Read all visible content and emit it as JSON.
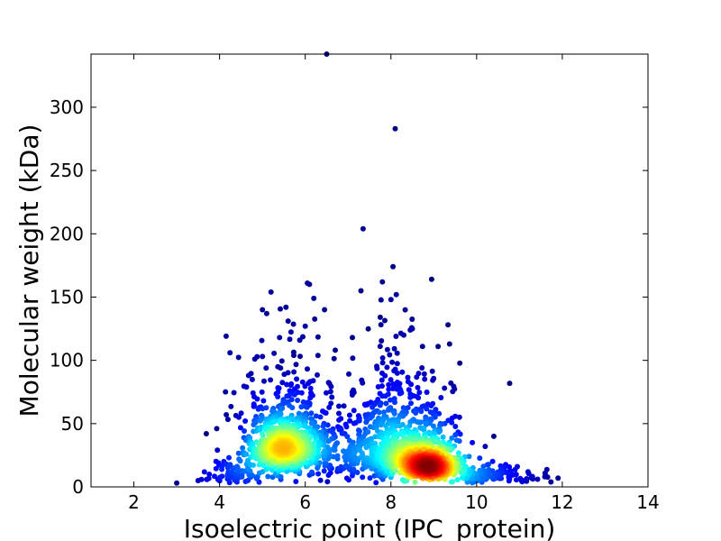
{
  "chart_data": {
    "type": "scatter",
    "title": "",
    "xlabel": "Isoelectric point (IPC_protein)",
    "ylabel": "Molecular weight (kDa)",
    "xlim": [
      1,
      14
    ],
    "ylim": [
      0,
      342
    ],
    "xticks": [
      2,
      4,
      6,
      8,
      10,
      12,
      14
    ],
    "yticks": [
      0,
      50,
      100,
      150,
      200,
      250,
      300
    ],
    "xtick_labels": [
      "2",
      "4",
      "6",
      "8",
      "10",
      "12",
      "14"
    ],
    "ytick_labels": [
      "0",
      "50",
      "100",
      "150",
      "200",
      "250",
      "300"
    ],
    "grid": false,
    "legend": "none",
    "colormap": "jet (point density)",
    "marker_color_low": "#0000a0",
    "marker_color_high": "#800000",
    "density_clusters": [
      {
        "center": [
          5.5,
          31
        ],
        "spread": [
          0.45,
          13
        ],
        "count": 750
      },
      {
        "center": [
          8.5,
          25
        ],
        "spread": [
          0.55,
          14
        ],
        "count": 650
      },
      {
        "center": [
          8.9,
          14
        ],
        "spread": [
          0.3,
          5
        ],
        "count": 550
      },
      {
        "center": [
          7.0,
          30
        ],
        "spread": [
          0.9,
          20
        ],
        "count": 300
      },
      {
        "center": [
          10.3,
          8
        ],
        "spread": [
          0.5,
          5
        ],
        "count": 120
      },
      {
        "center": [
          4.4,
          10
        ],
        "spread": [
          0.3,
          6
        ],
        "count": 80
      }
    ],
    "outliers": [
      [
        6.5,
        342
      ],
      [
        8.1,
        283
      ],
      [
        7.35,
        204
      ],
      [
        8.05,
        174
      ],
      [
        8.95,
        164
      ],
      [
        6.05,
        161
      ],
      [
        6.1,
        160
      ],
      [
        7.8,
        162
      ],
      [
        5.2,
        154
      ],
      [
        7.3,
        155
      ],
      [
        8.0,
        148
      ],
      [
        6.2,
        149
      ],
      [
        6.45,
        140
      ],
      [
        5.0,
        140
      ],
      [
        5.1,
        137
      ],
      [
        5.55,
        142
      ],
      [
        5.6,
        131
      ],
      [
        6.0,
        127
      ],
      [
        7.75,
        134
      ],
      [
        8.45,
        124
      ],
      [
        8.5,
        125
      ],
      [
        8.3,
        120
      ],
      [
        7.1,
        118
      ],
      [
        5.4,
        118
      ],
      [
        9.1,
        111
      ],
      [
        6.7,
        108
      ],
      [
        5.0,
        103
      ],
      [
        3.95,
        29
      ],
      [
        3.0,
        3
      ],
      [
        3.5,
        5
      ],
      [
        11.9,
        7
      ],
      [
        10.4,
        40
      ],
      [
        11.6,
        11
      ],
      [
        11.2,
        12
      ],
      [
        10.95,
        16
      ],
      [
        9.6,
        55
      ],
      [
        9.9,
        35
      ],
      [
        10.2,
        32
      ],
      [
        4.1,
        20
      ],
      [
        4.6,
        52
      ],
      [
        4.45,
        55
      ],
      [
        3.7,
        6
      ],
      [
        9.4,
        82
      ],
      [
        9.25,
        78
      ]
    ]
  }
}
